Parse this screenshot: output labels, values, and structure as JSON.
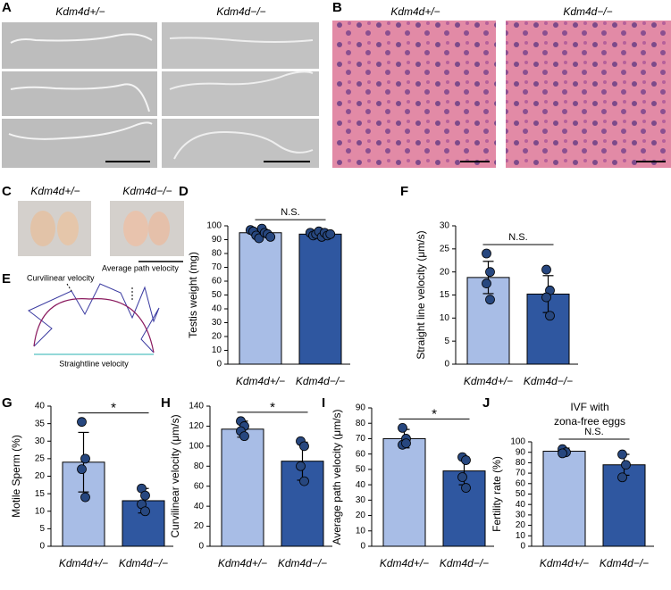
{
  "panel_letters": [
    "A",
    "B",
    "C",
    "D",
    "E",
    "F",
    "G",
    "H",
    "I",
    "J"
  ],
  "panel_a": {
    "labels": [
      "Kdm4d+/−",
      "Kdm4d−/−"
    ]
  },
  "panel_b": {
    "labels": [
      "Kdm4d+/−",
      "Kdm4d−/−"
    ]
  },
  "panel_c": {
    "labels": [
      "Kdm4d+/−",
      "Kdm4d−/−"
    ]
  },
  "panel_e": {
    "labels": [
      "Curvilinear velocity",
      "Average path velocity",
      "Straightline velocity"
    ]
  },
  "chart_data": [
    {
      "type": "bar",
      "ylabel": "Testis weight (mg)",
      "categories": [
        "Kdm4d+/−",
        "Kdm4d−/−"
      ],
      "colors": [
        "#a8bde6",
        "#2f57a0"
      ],
      "values": [
        95,
        94
      ],
      "errors": [
        3,
        2
      ],
      "points": [
        [
          97,
          96,
          93,
          91,
          98,
          95,
          94,
          92
        ],
        [
          95,
          93,
          94,
          96,
          92,
          95,
          93,
          94
        ]
      ],
      "significance": "N.S.",
      "ylim": [
        0,
        100
      ],
      "yticks": [
        0,
        10,
        20,
        30,
        40,
        50,
        60,
        70,
        80,
        90,
        100
      ]
    },
    {
      "type": "bar",
      "ylabel": "Straight line velocity (μm/s)",
      "categories": [
        "Kdm4d+/−",
        "Kdm4d−/−"
      ],
      "colors": [
        "#a8bde6",
        "#2f57a0"
      ],
      "values": [
        18.8,
        15.2
      ],
      "errors": [
        3.5,
        4
      ],
      "points": [
        [
          24,
          20,
          17.5,
          14
        ],
        [
          20.5,
          16,
          14.5,
          10.5
        ]
      ],
      "significance": "N.S.",
      "ylim": [
        0,
        30
      ],
      "yticks": [
        0,
        5,
        10,
        15,
        20,
        25,
        30
      ]
    },
    {
      "type": "bar",
      "ylabel": "Motile Sperm (%)",
      "categories": [
        "Kdm4d+/−",
        "Kdm4d−/−"
      ],
      "colors": [
        "#a8bde6",
        "#2f57a0"
      ],
      "values": [
        24,
        13
      ],
      "errors": [
        8.5,
        3.5
      ],
      "points": [
        [
          35.5,
          25,
          22,
          14
        ],
        [
          16.5,
          14.5,
          12,
          10
        ]
      ],
      "significance": "*",
      "ylim": [
        0,
        40
      ],
      "yticks": [
        0,
        5,
        10,
        15,
        20,
        25,
        30,
        35,
        40
      ]
    },
    {
      "type": "bar",
      "ylabel": "Curvilinear velocity (μm/s)",
      "categories": [
        "Kdm4d+/−",
        "Kdm4d−/−"
      ],
      "colors": [
        "#a8bde6",
        "#2f57a0"
      ],
      "values": [
        117,
        85
      ],
      "errors": [
        8,
        19
      ],
      "points": [
        [
          125,
          120,
          115,
          110
        ],
        [
          105,
          100,
          80,
          65
        ]
      ],
      "significance": "*",
      "ylim": [
        0,
        140
      ],
      "yticks": [
        0,
        20,
        40,
        60,
        80,
        100,
        120,
        140
      ]
    },
    {
      "type": "bar",
      "ylabel": "Average path velocity (μm/s)",
      "categories": [
        "Kdm4d+/−",
        "Kdm4d−/−"
      ],
      "colors": [
        "#a8bde6",
        "#2f57a0"
      ],
      "values": [
        70,
        49
      ],
      "errors": [
        6,
        9
      ],
      "points": [
        [
          77,
          70,
          66,
          67
        ],
        [
          58,
          56,
          45,
          38
        ]
      ],
      "significance": "*",
      "ylim": [
        0,
        90
      ],
      "yticks": [
        0,
        10,
        20,
        30,
        40,
        50,
        60,
        70,
        80,
        90
      ]
    },
    {
      "type": "bar",
      "title": [
        "IVF with",
        "zona-free eggs"
      ],
      "ylabel": "Fertility rate (%)",
      "categories": [
        "Kdm4d+/−",
        "Kdm4d−/−"
      ],
      "colors": [
        "#a8bde6",
        "#2f57a0"
      ],
      "values": [
        91,
        78
      ],
      "errors": [
        3,
        10
      ],
      "points": [
        [
          93,
          90,
          89
        ],
        [
          88,
          78,
          66
        ]
      ],
      "significance": "N.S.",
      "ylim": [
        0,
        100
      ],
      "yticks": [
        0,
        10,
        20,
        30,
        40,
        50,
        60,
        70,
        80,
        90,
        100
      ]
    }
  ]
}
